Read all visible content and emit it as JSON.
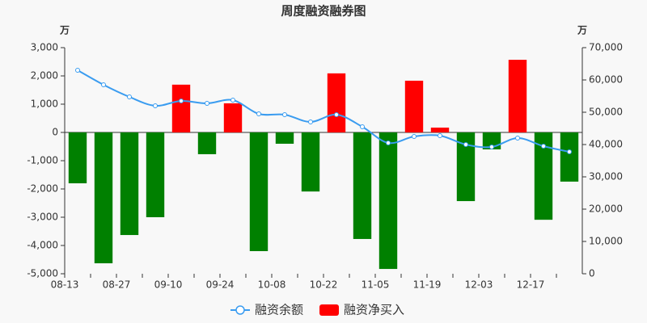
{
  "chart_data": {
    "type": "bar-line",
    "title": "周度融资融券图",
    "y_unit": "万",
    "y2_unit": "万",
    "categories": [
      "08-13",
      null,
      "08-27",
      null,
      "09-10",
      null,
      "09-24",
      null,
      "10-08",
      null,
      "10-22",
      null,
      "11-05",
      null,
      "11-19",
      null,
      "12-03",
      null,
      "12-17",
      null
    ],
    "series": [
      {
        "name": "融资余额",
        "type": "line",
        "axis": "y2",
        "color": "#3a9cf0",
        "values": [
          63000,
          58500,
          54750,
          52000,
          53500,
          52750,
          53750,
          49500,
          49250,
          47000,
          49250,
          45500,
          40500,
          42500,
          42750,
          40000,
          39250,
          42000,
          39500,
          37750
        ]
      },
      {
        "name": "融资净买入",
        "type": "bar",
        "color": "#ff0000",
        "negative_color": "#008000",
        "values": [
          -1800,
          -4630,
          -3630,
          -3000,
          1690,
          -770,
          1030,
          -4200,
          -400,
          -2090,
          2090,
          -3770,
          -4830,
          1830,
          170,
          -2430,
          -600,
          2570,
          -3090,
          -1740
        ]
      }
    ],
    "ylim": [
      -5000,
      3000
    ],
    "yticks": [
      {
        "value": -5000,
        "label": "-5,000"
      },
      {
        "value": -4000,
        "label": "-4,000"
      },
      {
        "value": -3000,
        "label": "-3,000"
      },
      {
        "value": -2000,
        "label": "-2,000"
      },
      {
        "value": -1000,
        "label": "-1,000"
      },
      0,
      {
        "value": 1000,
        "label": "1,000"
      },
      {
        "value": 2000,
        "label": "2,000"
      },
      {
        "value": 3000,
        "label": "3,000"
      }
    ],
    "y2lim": [
      0,
      70000
    ],
    "y2ticks": [
      0,
      {
        "value": 10000,
        "label": "10,000"
      },
      {
        "value": 20000,
        "label": "20,000"
      },
      {
        "value": 30000,
        "label": "30,000"
      },
      {
        "value": 40000,
        "label": "40,000"
      },
      {
        "value": 50000,
        "label": "50,000"
      },
      {
        "value": 60000,
        "label": "60,000"
      },
      {
        "value": 70000,
        "label": "70,000"
      }
    ]
  }
}
